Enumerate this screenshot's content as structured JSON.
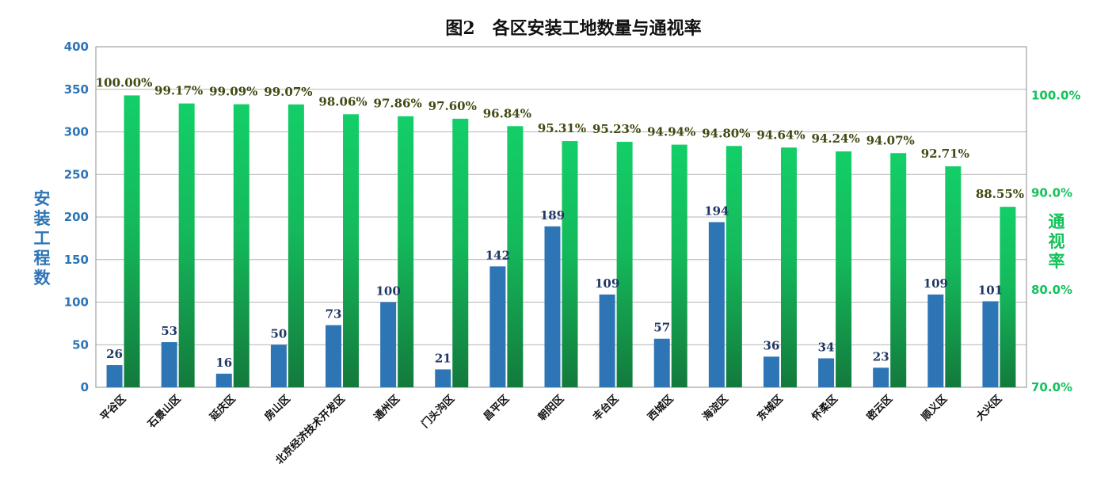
{
  "chart_data": {
    "type": "bar",
    "title": "图2　各区安装工地数量与通视率",
    "ylabel": "安装工程数",
    "y2label": "通视率",
    "ylim": [
      0,
      400
    ],
    "y_ticks": [
      "0",
      "50",
      "100",
      "150",
      "200",
      "250",
      "300",
      "350",
      "400"
    ],
    "y2lim": [
      0.7,
      1.05
    ],
    "y2_ticks": [
      "70.0%",
      "80.0%",
      "90.0%",
      "100.0%"
    ],
    "grid": true,
    "colors": {
      "count": "#2e75b6",
      "rate_top": "#13cf68",
      "rate_bottom": "#137a3c"
    },
    "categories": [
      "平谷区",
      "石景山区",
      "延庆区",
      "房山区",
      "北京经济技术开发区",
      "通州区",
      "门头沟区",
      "昌平区",
      "朝阳区",
      "丰台区",
      "西城区",
      "海淀区",
      "东城区",
      "怀柔区",
      "密云区",
      "顺义区",
      "大兴区"
    ],
    "series": [
      {
        "axis": "left",
        "values": [
          26,
          53,
          16,
          50,
          73,
          100,
          21,
          142,
          189,
          109,
          57,
          194,
          36,
          34,
          23,
          109,
          101
        ],
        "labels": [
          "26",
          "53",
          "16",
          "50",
          "73",
          "100",
          "21",
          "142",
          "189",
          "109",
          "57",
          "194",
          "36",
          "34",
          "23",
          "109",
          "101"
        ]
      },
      {
        "axis": "right",
        "values": [
          1.0,
          0.9917,
          0.9909,
          0.9907,
          0.9806,
          0.9786,
          0.976,
          0.9684,
          0.9531,
          0.9523,
          0.9494,
          0.948,
          0.9464,
          0.9424,
          0.9407,
          0.9271,
          0.8855
        ],
        "labels": [
          "100.00%",
          "99.17%",
          "99.09%",
          "99.07%",
          "98.06%",
          "97.86%",
          "97.60%",
          "96.84%",
          "95.31%",
          "95.23%",
          "94.94%",
          "94.80%",
          "94.64%",
          "94.24%",
          "94.07%",
          "92.71%",
          "88.55%"
        ]
      }
    ]
  }
}
